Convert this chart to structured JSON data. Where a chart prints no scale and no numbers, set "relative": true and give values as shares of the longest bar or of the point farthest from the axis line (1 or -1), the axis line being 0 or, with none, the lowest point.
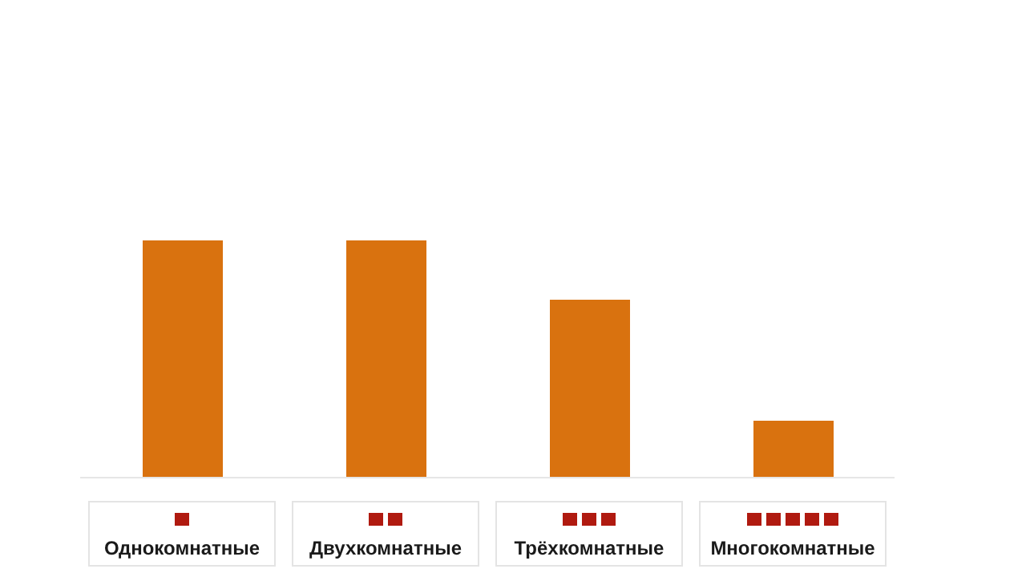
{
  "chart_data": {
    "type": "bar",
    "relative": true,
    "categories": [
      "Однокомнатные",
      "Двухкомнатные",
      "Трёхкомнатные",
      "Многокомнатные"
    ],
    "values": [
      1,
      1,
      0.75,
      0.24
    ],
    "color": "#d9720f"
  }
}
